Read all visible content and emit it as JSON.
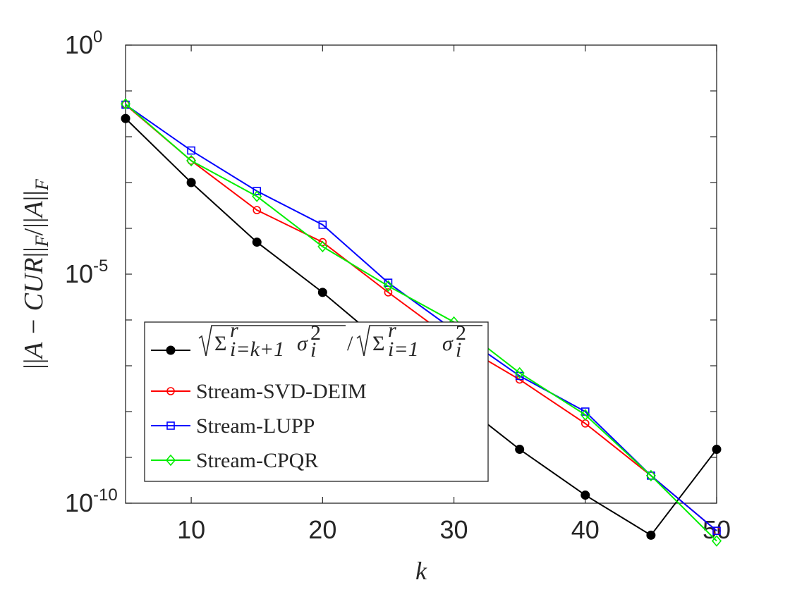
{
  "chart_data": {
    "type": "line",
    "title": "",
    "xlabel": "k",
    "ylabel": "||A − CUR||_F / ||A||_F",
    "ylabel_display": {
      "bars_left": "||",
      "expr": "A − CUR",
      "bars_mid": "||",
      "sub_F1": "F",
      "slash": "/",
      "bars_a_left": "||",
      "expr2": "A",
      "bars_a_right": "||",
      "sub_F2": "F"
    },
    "y_scale": "log",
    "xlim": [
      5,
      50
    ],
    "ylim": [
      1e-10,
      1
    ],
    "x_ticks": [
      10,
      20,
      30,
      40,
      50
    ],
    "x_tick_labels": [
      "10",
      "20",
      "30",
      "40",
      "50"
    ],
    "y_ticks": [
      1e-10,
      1e-05,
      1
    ],
    "y_tick_labels": [
      {
        "base": "10",
        "exp": "-10"
      },
      {
        "base": "10",
        "exp": "-5"
      },
      {
        "base": "10",
        "exp": "0"
      }
    ],
    "grid": false,
    "legend_position": "bottom-left",
    "x": [
      5,
      10,
      15,
      20,
      25,
      30,
      35,
      40,
      45,
      50
    ],
    "series": [
      {
        "name": "√(Σ_{i=k+1}^{r} σ_i²) / √(Σ_{i=1}^{r} σ_i²)",
        "legend_math": {
          "sum1_sub": "i=k+1",
          "sum1_sup": "r",
          "sigma": "σ",
          "sigma_sub": "i",
          "sigma_sup": "2",
          "slash": "/",
          "sum2_sub": "i=1",
          "sum2_sup": "r"
        },
        "color": "#000000",
        "marker": "filled-circle",
        "values": [
          0.025,
          0.001,
          5e-05,
          4e-06,
          2.5e-07,
          2e-08,
          1.5e-09,
          1.5e-10,
          2e-11,
          1.5e-09
        ]
      },
      {
        "name": "Stream-SVD-DEIM",
        "color": "#ff0000",
        "marker": "circle",
        "values": [
          0.05,
          0.003,
          0.00025,
          5e-05,
          4e-06,
          3.5e-07,
          5e-08,
          5.5e-09,
          4e-10,
          2.5e-11
        ]
      },
      {
        "name": "Stream-LUPP",
        "color": "#0000ff",
        "marker": "square",
        "values": [
          0.05,
          0.005,
          0.00065,
          0.00012,
          6.5e-06,
          6e-07,
          6e-08,
          1e-08,
          4e-10,
          2.5e-11
        ]
      },
      {
        "name": "Stream-CPQR",
        "color": "#00ee00",
        "marker": "diamond",
        "values": [
          0.052,
          0.003,
          0.0005,
          4e-05,
          5.5e-06,
          9e-07,
          7e-08,
          8.5e-09,
          4e-10,
          1.5e-11
        ]
      }
    ]
  }
}
